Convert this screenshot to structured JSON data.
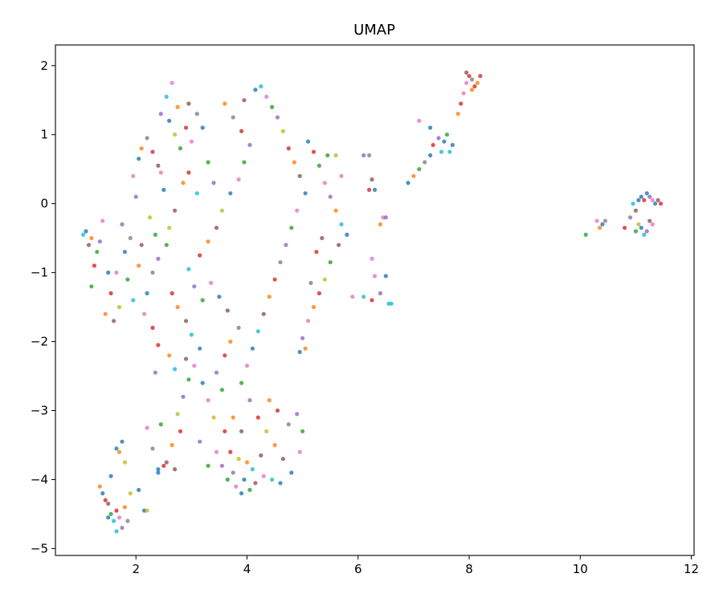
{
  "chart_data": {
    "type": "scatter",
    "title": "UMAP",
    "xlabel": "",
    "ylabel": "",
    "xlim": [
      0.55,
      12.05
    ],
    "ylim": [
      -5.1,
      2.3
    ],
    "x_ticks": [
      2,
      4,
      6,
      8,
      10,
      12
    ],
    "y_ticks": [
      2,
      1,
      0,
      -1,
      -2,
      -3,
      -4,
      -5
    ],
    "x_tick_labels": [
      "2",
      "4",
      "6",
      "8",
      "10",
      "12"
    ],
    "y_tick_labels": [
      "2",
      "1",
      "0",
      "−1",
      "−2",
      "−3",
      "−4",
      "−5"
    ],
    "grid": false,
    "legend": "none",
    "colors": [
      "#1f77b4",
      "#ff7f0e",
      "#2ca02c",
      "#d62728",
      "#9467bd",
      "#8c564b",
      "#e377c2",
      "#7f7f7f",
      "#bcbd22",
      "#17becf"
    ],
    "points": [
      [
        1.1,
        -0.4,
        0
      ],
      [
        1.2,
        -0.5,
        1
      ],
      [
        1.15,
        -0.6,
        5
      ],
      [
        1.3,
        -0.7,
        2
      ],
      [
        1.05,
        -0.45,
        9
      ],
      [
        1.25,
        -0.9,
        3
      ],
      [
        1.4,
        -0.25,
        6
      ],
      [
        1.35,
        -0.55,
        4
      ],
      [
        1.2,
        -1.2,
        2
      ],
      [
        1.5,
        -1.0,
        0
      ],
      [
        1.45,
        -1.6,
        1
      ],
      [
        1.6,
        -1.7,
        5
      ],
      [
        1.7,
        -1.5,
        8
      ],
      [
        1.55,
        -1.3,
        3
      ],
      [
        1.65,
        -1.0,
        6
      ],
      [
        1.8,
        -0.7,
        0
      ],
      [
        1.75,
        -0.3,
        4
      ],
      [
        1.9,
        -0.5,
        7
      ],
      [
        1.85,
        -1.1,
        2
      ],
      [
        1.95,
        -1.4,
        9
      ],
      [
        2.05,
        -0.9,
        1
      ],
      [
        2.1,
        -0.6,
        5
      ],
      [
        2.2,
        -1.3,
        0
      ],
      [
        2.3,
        -1.8,
        3
      ],
      [
        2.15,
        -1.6,
        6
      ],
      [
        2.25,
        -0.2,
        8
      ],
      [
        2.35,
        -0.45,
        2
      ],
      [
        2.0,
        0.1,
        4
      ],
      [
        1.95,
        0.4,
        6
      ],
      [
        2.05,
        0.65,
        0
      ],
      [
        2.1,
        0.8,
        1
      ],
      [
        2.2,
        0.95,
        7
      ],
      [
        2.3,
        0.75,
        3
      ],
      [
        2.4,
        0.55,
        5
      ],
      [
        2.45,
        1.3,
        4
      ],
      [
        2.6,
        1.2,
        0
      ],
      [
        2.55,
        1.55,
        9
      ],
      [
        2.65,
        1.75,
        6
      ],
      [
        2.7,
        1.0,
        8
      ],
      [
        2.8,
        0.8,
        2
      ],
      [
        2.9,
        1.1,
        3
      ],
      [
        2.75,
        1.4,
        1
      ],
      [
        2.95,
        1.45,
        5
      ],
      [
        3.1,
        1.3,
        7
      ],
      [
        3.2,
        1.1,
        0
      ],
      [
        3.0,
        0.9,
        6
      ],
      [
        3.3,
        0.6,
        2
      ],
      [
        3.4,
        0.3,
        4
      ],
      [
        3.1,
        0.15,
        9
      ],
      [
        2.95,
        0.45,
        3
      ],
      [
        2.85,
        0.3,
        1
      ],
      [
        2.7,
        -0.1,
        5
      ],
      [
        2.6,
        -0.35,
        8
      ],
      [
        2.5,
        0.2,
        0
      ],
      [
        2.45,
        0.45,
        6
      ],
      [
        2.55,
        -0.6,
        2
      ],
      [
        2.4,
        -0.8,
        4
      ],
      [
        2.3,
        -1.0,
        7
      ],
      [
        2.65,
        -1.3,
        3
      ],
      [
        2.75,
        -1.5,
        1
      ],
      [
        2.9,
        -1.7,
        5
      ],
      [
        3.0,
        -1.9,
        9
      ],
      [
        3.15,
        -2.1,
        0
      ],
      [
        3.05,
        -2.35,
        6
      ],
      [
        2.95,
        -2.55,
        2
      ],
      [
        2.85,
        -2.8,
        4
      ],
      [
        2.75,
        -3.05,
        8
      ],
      [
        2.8,
        -3.3,
        3
      ],
      [
        2.65,
        -3.5,
        1
      ],
      [
        2.55,
        -3.75,
        5
      ],
      [
        2.4,
        -3.9,
        0
      ],
      [
        2.3,
        -3.55,
        7
      ],
      [
        2.2,
        -3.25,
        6
      ],
      [
        2.45,
        -3.2,
        2
      ],
      [
        2.35,
        -2.45,
        4
      ],
      [
        2.4,
        -2.05,
        3
      ],
      [
        2.6,
        -2.2,
        1
      ],
      [
        2.7,
        -2.4,
        9
      ],
      [
        2.9,
        -2.25,
        5
      ],
      [
        3.2,
        -2.6,
        0
      ],
      [
        3.3,
        -2.85,
        6
      ],
      [
        3.4,
        -3.1,
        8
      ],
      [
        3.55,
        -2.7,
        2
      ],
      [
        3.45,
        -2.45,
        4
      ],
      [
        3.6,
        -2.2,
        3
      ],
      [
        3.7,
        -2.0,
        1
      ],
      [
        3.85,
        -1.8,
        7
      ],
      [
        3.65,
        -1.55,
        5
      ],
      [
        3.5,
        -1.35,
        0
      ],
      [
        3.35,
        -1.15,
        6
      ],
      [
        3.2,
        -1.4,
        2
      ],
      [
        3.05,
        -1.2,
        4
      ],
      [
        2.95,
        -0.95,
        9
      ],
      [
        3.15,
        -0.75,
        3
      ],
      [
        3.3,
        -0.55,
        1
      ],
      [
        3.45,
        -0.35,
        5
      ],
      [
        3.55,
        -0.1,
        8
      ],
      [
        3.7,
        0.15,
        0
      ],
      [
        3.85,
        0.35,
        6
      ],
      [
        3.95,
        0.6,
        2
      ],
      [
        4.05,
        0.85,
        4
      ],
      [
        3.9,
        1.05,
        3
      ],
      [
        3.75,
        1.25,
        7
      ],
      [
        3.6,
        1.45,
        1
      ],
      [
        3.95,
        1.5,
        5
      ],
      [
        4.15,
        1.65,
        0
      ],
      [
        4.25,
        1.7,
        9
      ],
      [
        4.35,
        1.55,
        6
      ],
      [
        4.45,
        1.4,
        2
      ],
      [
        4.55,
        1.25,
        4
      ],
      [
        4.65,
        1.05,
        8
      ],
      [
        4.75,
        0.8,
        3
      ],
      [
        4.85,
        0.6,
        1
      ],
      [
        4.95,
        0.4,
        5
      ],
      [
        5.05,
        0.15,
        0
      ],
      [
        4.9,
        -0.1,
        6
      ],
      [
        4.8,
        -0.35,
        2
      ],
      [
        4.7,
        -0.6,
        4
      ],
      [
        4.6,
        -0.85,
        7
      ],
      [
        4.5,
        -1.1,
        3
      ],
      [
        4.4,
        -1.35,
        1
      ],
      [
        4.3,
        -1.6,
        5
      ],
      [
        4.2,
        -1.85,
        9
      ],
      [
        4.1,
        -2.1,
        0
      ],
      [
        4.0,
        -2.35,
        6
      ],
      [
        3.9,
        -2.6,
        2
      ],
      [
        4.05,
        -2.85,
        4
      ],
      [
        4.2,
        -3.1,
        3
      ],
      [
        4.35,
        -3.3,
        8
      ],
      [
        4.5,
        -3.5,
        1
      ],
      [
        4.65,
        -3.7,
        5
      ],
      [
        4.8,
        -3.9,
        0
      ],
      [
        4.95,
        -3.6,
        6
      ],
      [
        5.0,
        -3.3,
        2
      ],
      [
        4.9,
        -3.05,
        4
      ],
      [
        4.75,
        -3.2,
        7
      ],
      [
        4.55,
        -3.0,
        3
      ],
      [
        4.4,
        -2.85,
        1
      ],
      [
        4.25,
        -3.65,
        5
      ],
      [
        4.1,
        -3.85,
        9
      ],
      [
        3.95,
        -4.0,
        0
      ],
      [
        3.8,
        -4.1,
        6
      ],
      [
        3.65,
        -4.0,
        2
      ],
      [
        3.55,
        -3.8,
        4
      ],
      [
        3.7,
        -3.6,
        3
      ],
      [
        3.85,
        -3.7,
        8
      ],
      [
        4.0,
        -3.75,
        1
      ],
      [
        4.15,
        -4.05,
        5
      ],
      [
        3.9,
        -4.2,
        0
      ],
      [
        3.75,
        -3.9,
        7
      ],
      [
        3.45,
        -3.6,
        6
      ],
      [
        3.3,
        -3.8,
        2
      ],
      [
        3.15,
        -3.45,
        4
      ],
      [
        3.6,
        -3.3,
        3
      ],
      [
        3.75,
        -3.1,
        1
      ],
      [
        3.9,
        -3.3,
        5
      ],
      [
        4.45,
        -4.0,
        9
      ],
      [
        4.6,
        -4.05,
        0
      ],
      [
        4.3,
        -3.95,
        6
      ],
      [
        4.05,
        -4.15,
        2
      ],
      [
        1.4,
        -4.2,
        0
      ],
      [
        1.35,
        -4.1,
        1
      ],
      [
        1.5,
        -4.35,
        5
      ],
      [
        1.55,
        -4.5,
        2
      ],
      [
        1.6,
        -4.6,
        9
      ],
      [
        1.65,
        -4.45,
        3
      ],
      [
        1.7,
        -4.55,
        6
      ],
      [
        1.75,
        -4.7,
        4
      ],
      [
        1.8,
        -4.4,
        1
      ],
      [
        1.85,
        -4.6,
        7
      ],
      [
        1.65,
        -4.75,
        9
      ],
      [
        1.5,
        -4.55,
        0
      ],
      [
        1.45,
        -4.3,
        3
      ],
      [
        1.9,
        -4.2,
        8
      ],
      [
        1.55,
        -3.95,
        0
      ],
      [
        1.65,
        -3.55,
        0
      ],
      [
        1.75,
        -3.45,
        0
      ],
      [
        1.7,
        -3.6,
        1
      ],
      [
        1.8,
        -3.75,
        8
      ],
      [
        2.05,
        -4.15,
        0
      ],
      [
        2.15,
        -4.45,
        0
      ],
      [
        2.2,
        -4.45,
        8
      ],
      [
        2.4,
        -3.85,
        0
      ],
      [
        2.5,
        -3.8,
        3
      ],
      [
        2.7,
        -3.85,
        5
      ],
      [
        5.1,
        0.9,
        0
      ],
      [
        5.2,
        0.75,
        3
      ],
      [
        5.3,
        0.55,
        2
      ],
      [
        5.4,
        0.3,
        6
      ],
      [
        5.5,
        0.1,
        4
      ],
      [
        5.6,
        -0.1,
        1
      ],
      [
        5.7,
        -0.3,
        9
      ],
      [
        5.8,
        -0.45,
        0
      ],
      [
        5.65,
        -0.6,
        5
      ],
      [
        5.5,
        -0.85,
        2
      ],
      [
        5.4,
        -1.1,
        8
      ],
      [
        5.3,
        -1.3,
        3
      ],
      [
        5.2,
        -1.5,
        1
      ],
      [
        5.1,
        -1.7,
        6
      ],
      [
        5.0,
        -1.95,
        4
      ],
      [
        4.95,
        -2.15,
        0
      ],
      [
        5.05,
        -2.1,
        1
      ],
      [
        5.15,
        -1.15,
        7
      ],
      [
        5.25,
        -0.7,
        3
      ],
      [
        5.35,
        -0.5,
        5
      ],
      [
        5.45,
        0.7,
        2
      ],
      [
        5.6,
        0.7,
        8
      ],
      [
        5.7,
        0.4,
        6
      ],
      [
        6.1,
        0.7,
        4
      ],
      [
        6.2,
        0.7,
        7
      ],
      [
        6.25,
        0.35,
        5
      ],
      [
        6.2,
        0.2,
        3
      ],
      [
        6.3,
        0.2,
        0
      ],
      [
        6.4,
        -0.3,
        1
      ],
      [
        6.45,
        -0.2,
        6
      ],
      [
        6.5,
        -0.2,
        4
      ],
      [
        6.1,
        -1.35,
        9
      ],
      [
        6.25,
        -1.4,
        3
      ],
      [
        6.4,
        -1.3,
        4
      ],
      [
        6.55,
        -1.45,
        9
      ],
      [
        6.6,
        -1.45,
        9
      ],
      [
        6.5,
        -1.05,
        0
      ],
      [
        6.3,
        -1.05,
        6
      ],
      [
        6.25,
        -0.8,
        6
      ],
      [
        5.9,
        -1.35,
        6
      ],
      [
        6.9,
        0.3,
        0
      ],
      [
        7.0,
        0.4,
        1
      ],
      [
        7.1,
        0.5,
        2
      ],
      [
        7.2,
        0.6,
        7
      ],
      [
        7.3,
        0.7,
        0
      ],
      [
        7.35,
        0.85,
        3
      ],
      [
        7.45,
        0.95,
        4
      ],
      [
        7.5,
        0.75,
        9
      ],
      [
        7.55,
        0.9,
        0
      ],
      [
        7.6,
        1.0,
        2
      ],
      [
        7.1,
        1.2,
        6
      ],
      [
        7.3,
        1.1,
        0
      ],
      [
        7.65,
        0.75,
        9
      ],
      [
        7.7,
        0.85,
        0
      ],
      [
        7.8,
        1.3,
        1
      ],
      [
        7.85,
        1.45,
        3
      ],
      [
        7.9,
        1.6,
        6
      ],
      [
        7.95,
        1.75,
        6
      ],
      [
        8.0,
        1.85,
        3
      ],
      [
        8.05,
        1.8,
        7
      ],
      [
        8.1,
        1.7,
        3
      ],
      [
        8.15,
        1.75,
        1
      ],
      [
        8.05,
        1.65,
        1
      ],
      [
        7.95,
        1.9,
        5
      ],
      [
        8.2,
        1.85,
        3
      ],
      [
        10.1,
        -0.45,
        2
      ],
      [
        10.3,
        -0.25,
        6
      ],
      [
        10.35,
        -0.35,
        1
      ],
      [
        10.4,
        -0.3,
        0
      ],
      [
        10.45,
        -0.25,
        7
      ],
      [
        10.8,
        -0.35,
        3
      ],
      [
        10.9,
        -0.2,
        4
      ],
      [
        11.0,
        -0.1,
        5
      ],
      [
        11.05,
        0.05,
        0
      ],
      [
        11.1,
        0.1,
        0
      ],
      [
        11.15,
        0.05,
        3
      ],
      [
        11.2,
        0.15,
        0
      ],
      [
        11.25,
        0.1,
        4
      ],
      [
        11.3,
        0.05,
        6
      ],
      [
        11.35,
        0.0,
        0
      ],
      [
        11.4,
        0.05,
        5
      ],
      [
        11.45,
        0.0,
        3
      ],
      [
        11.1,
        -0.35,
        0
      ],
      [
        11.15,
        -0.45,
        9
      ],
      [
        11.2,
        -0.4,
        4
      ],
      [
        11.3,
        -0.3,
        6
      ],
      [
        11.25,
        -0.25,
        5
      ],
      [
        11.0,
        -0.4,
        2
      ],
      [
        11.05,
        -0.3,
        8
      ],
      [
        10.95,
        0.0,
        9
      ]
    ]
  }
}
